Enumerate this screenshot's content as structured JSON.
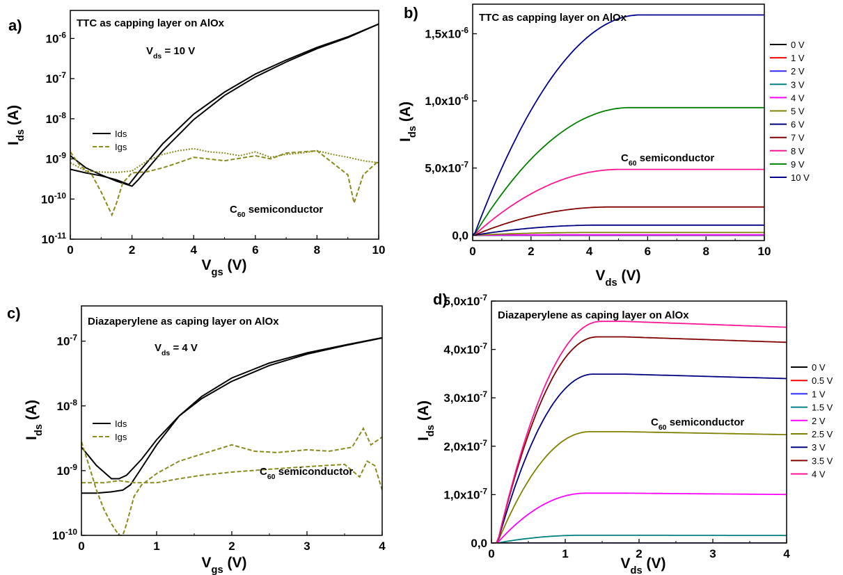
{
  "chart_data": [
    {
      "panel": "a)",
      "type": "line",
      "title": "TTC as capping layer on AlOx",
      "annotation_main": "V",
      "annotation_main_sub": "ds",
      "annotation_main_rest": " = 10 V",
      "annotation_2": "C",
      "annotation_2_sub": "60",
      "annotation_2_rest": " semiconductor",
      "xlabel": "V",
      "xlabel_sub": "gs",
      "xlabel_rest": " (V)",
      "ylabel": "I",
      "ylabel_sub": "ds",
      "ylabel_rest": " (A)",
      "xlim": [
        0,
        10
      ],
      "ylim": [
        1e-11,
        5e-06
      ],
      "yscale": "log",
      "xticks": [
        "0",
        "2",
        "4",
        "6",
        "8",
        "10"
      ],
      "yticks": [
        {
          "value": 1e-11,
          "base": "10",
          "exp": "-11"
        },
        {
          "value": 1e-10,
          "base": "10",
          "exp": "-10"
        },
        {
          "value": 1e-09,
          "base": "10",
          "exp": "-9"
        },
        {
          "value": 1e-08,
          "base": "10",
          "exp": "-8"
        },
        {
          "value": 1e-07,
          "base": "10",
          "exp": "-7"
        },
        {
          "value": 1e-06,
          "base": "10",
          "exp": "-6"
        }
      ],
      "legend": [
        {
          "name": "Ids",
          "style": "solid",
          "color": "#000000"
        },
        {
          "name": "Igs",
          "style": "dashed",
          "color": "#8a8a1e"
        }
      ],
      "series": [
        {
          "name": "Ids",
          "color": "#000000",
          "style": "solid",
          "x": [
            0,
            0.5,
            1,
            1.5,
            1.9,
            2.2,
            3,
            4,
            5,
            6,
            7,
            8,
            9,
            10
          ],
          "y": [
            5.5e-10,
            4.5e-10,
            3.8e-10,
            3e-10,
            2.3e-10,
            4.5e-10,
            2.4e-09,
            1.3e-08,
            4.6e-08,
            1.3e-07,
            2.9e-07,
            6e-07,
            1.1e-06,
            2.3e-06
          ]
        },
        {
          "name": "Ids",
          "color": "#000000",
          "style": "solid",
          "x": [
            0,
            0.5,
            1,
            1.5,
            2,
            2.2,
            3,
            4,
            5,
            6,
            7,
            8,
            9,
            10
          ],
          "y": [
            1.2e-09,
            6e-10,
            4e-10,
            2.8e-10,
            2.1e-10,
            3e-10,
            1.6e-09,
            9.5e-09,
            3.8e-08,
            1.1e-07,
            2.6e-07,
            5.6e-07,
            1.05e-06,
            2.3e-06
          ]
        },
        {
          "name": "Igs",
          "color": "#8a8a1e",
          "style": "dashed",
          "x": [
            0,
            0.3,
            0.7,
            1.0,
            1.2,
            1.35,
            1.5,
            1.7,
            2.0,
            2.5,
            3,
            3.5,
            4,
            5,
            6,
            6.5,
            7,
            8,
            8.5,
            9,
            9.2,
            9.5,
            10
          ],
          "y": [
            1.5e-09,
            7e-10,
            4e-10,
            1.5e-10,
            7e-11,
            4e-11,
            8e-11,
            2.5e-10,
            4.5e-10,
            4.8e-10,
            6e-10,
            8e-10,
            1.1e-09,
            9e-10,
            1.2e-09,
            1e-09,
            1.4e-09,
            1.6e-09,
            8e-10,
            4e-10,
            8e-11,
            4e-10,
            9e-10
          ]
        },
        {
          "name": "Igs",
          "color": "#8a8a1e",
          "style": "dotted",
          "x": [
            0,
            0.5,
            1,
            1.5,
            2,
            2.5,
            3,
            3.5,
            4,
            4.5,
            5,
            5.5,
            6,
            6.5,
            7,
            7.5,
            8,
            8.5,
            9,
            9.5,
            10
          ],
          "y": [
            8e-10,
            5e-10,
            4.7e-10,
            4.6e-10,
            5e-10,
            9e-10,
            1.3e-09,
            1.6e-09,
            1.8e-09,
            1.5e-09,
            1.4e-09,
            1.2e-09,
            1.5e-09,
            1.1e-09,
            1.3e-09,
            1.4e-09,
            1.6e-09,
            1.3e-09,
            1.1e-09,
            9e-10,
            8e-10
          ]
        }
      ]
    },
    {
      "panel": "b)",
      "type": "line",
      "title": "TTC as capping layer on AlOx",
      "annotation_2": "C",
      "annotation_2_sub": "60",
      "annotation_2_rest": " semiconductor",
      "xlabel": "V",
      "xlabel_sub": "ds",
      "xlabel_rest": " (V)",
      "ylabel": "I",
      "ylabel_sub": "ds",
      "ylabel_rest": " (A)",
      "xlim": [
        0,
        10
      ],
      "ylim": [
        -4e-08,
        1.72e-06
      ],
      "yscale": "linear",
      "xticks": [
        "0",
        "2",
        "4",
        "6",
        "8",
        "10"
      ],
      "yticks": [
        {
          "value": 0,
          "base": "0,0",
          "exp": ""
        },
        {
          "value": 5e-07,
          "base": "5,0x10",
          "exp": "-7"
        },
        {
          "value": 1e-06,
          "base": "1,0x10",
          "exp": "-6"
        },
        {
          "value": 1.5e-06,
          "base": "1,5x10",
          "exp": "-6"
        }
      ],
      "series": [
        {
          "name": "0 V",
          "color": "#000000",
          "sat": 0
        },
        {
          "name": "1 V",
          "color": "#ff0000",
          "sat": 0
        },
        {
          "name": "2 V",
          "color": "#2a2aff",
          "sat": 0
        },
        {
          "name": "3 V",
          "color": "#008080",
          "sat": 1e-09
        },
        {
          "name": "4 V",
          "color": "#ff00ff",
          "sat": 3e-09
        },
        {
          "name": "5 V",
          "color": "#808000",
          "sat": 2e-08
        },
        {
          "name": "6 V",
          "color": "#000080",
          "sat": 7.5e-08
        },
        {
          "name": "7 V",
          "color": "#800000",
          "sat": 2.1e-07
        },
        {
          "name": "8 V",
          "color": "#ff1493",
          "sat": 4.9e-07
        },
        {
          "name": "9 V",
          "color": "#008000",
          "sat": 9.5e-07
        },
        {
          "name": "10 V",
          "color": "#00008b",
          "sat": 1.64e-06
        }
      ]
    },
    {
      "panel": "c)",
      "type": "line",
      "title": "Diazaperylene as caping layer on AlOx",
      "annotation_main": "V",
      "annotation_main_sub": "ds",
      "annotation_main_rest": " = 4 V",
      "annotation_2": "C",
      "annotation_2_sub": "60",
      "annotation_2_rest": " semiconductor",
      "xlabel": "V",
      "xlabel_sub": "gs",
      "xlabel_rest": " (V)",
      "ylabel": "I",
      "ylabel_sub": "ds",
      "ylabel_rest": " (A)",
      "xlim": [
        0,
        4
      ],
      "ylim": [
        1e-10,
        3.5e-07
      ],
      "yscale": "log",
      "xticks": [
        "0",
        "1",
        "2",
        "3",
        "4"
      ],
      "yticks": [
        {
          "value": 1e-10,
          "base": "10",
          "exp": "-10"
        },
        {
          "value": 1e-09,
          "base": "10",
          "exp": "-9"
        },
        {
          "value": 1e-08,
          "base": "10",
          "exp": "-8"
        },
        {
          "value": 1e-07,
          "base": "10",
          "exp": "-7"
        }
      ],
      "legend": [
        {
          "name": "Ids",
          "style": "solid",
          "color": "#000000"
        },
        {
          "name": "Igs",
          "style": "dashed",
          "color": "#8a8a1e"
        }
      ],
      "series": [
        {
          "name": "Ids",
          "color": "#000000",
          "style": "solid",
          "x": [
            0,
            0.2,
            0.4,
            0.5,
            0.6,
            0.8,
            1.0,
            1.3,
            1.6,
            2.0,
            2.5,
            3.0,
            3.5,
            4.0
          ],
          "y": [
            2.3e-09,
            1.2e-09,
            7.5e-10,
            7.5e-10,
            8.5e-10,
            1.5e-09,
            3e-09,
            7e-09,
            1.3e-08,
            2.4e-08,
            4.2e-08,
            6.3e-08,
            8.5e-08,
            1.12e-07
          ]
        },
        {
          "name": "Ids",
          "color": "#000000",
          "style": "solid",
          "x": [
            0,
            0.2,
            0.4,
            0.55,
            0.65,
            0.8,
            1.0,
            1.3,
            1.6,
            2.0,
            2.5,
            3.0,
            3.5,
            4.0
          ],
          "y": [
            4.5e-10,
            4.5e-10,
            4.7e-10,
            5e-10,
            6e-10,
            1.1e-09,
            2.5e-09,
            7e-09,
            1.4e-08,
            2.7e-08,
            4.6e-08,
            6.6e-08,
            8.7e-08,
            1.13e-07
          ]
        },
        {
          "name": "Igs",
          "color": "#8a8a1e",
          "style": "dashed",
          "x": [
            0,
            0.1,
            0.2,
            0.3,
            0.4,
            0.5,
            0.55,
            0.6,
            0.7,
            0.8,
            1.0,
            1.3,
            1.6,
            2.0,
            2.3,
            2.6,
            3.0,
            3.3,
            3.6,
            3.75,
            3.85,
            4.0
          ],
          "y": [
            2.8e-09,
            1.2e-09,
            5e-10,
            2.5e-10,
            1.5e-10,
            1e-10,
            1e-10,
            1.5e-10,
            4e-10,
            6e-10,
            9e-10,
            1.4e-09,
            1.8e-09,
            2.5e-09,
            2e-09,
            1.9e-09,
            2.1e-09,
            2e-09,
            2.3e-09,
            4.5e-09,
            2.5e-09,
            3.3e-09
          ]
        },
        {
          "name": "Igs",
          "color": "#8a8a1e",
          "style": "dashed",
          "x": [
            0,
            0.3,
            0.5,
            0.7,
            1.0,
            1.3,
            1.6,
            2.0,
            2.5,
            3.0,
            3.5,
            3.7,
            3.8,
            3.9,
            4.0
          ],
          "y": [
            6.5e-10,
            6.5e-10,
            7e-10,
            6.5e-10,
            6.5e-10,
            7.5e-10,
            8.5e-10,
            9.5e-10,
            1.05e-09,
            1.15e-09,
            1.25e-09,
            8e-10,
            1.4e-09,
            1.2e-09,
            5e-10
          ]
        }
      ]
    },
    {
      "panel": "d)",
      "type": "line",
      "title": "Diazaperylene as caping layer on AlOx",
      "annotation_2": "C",
      "annotation_2_sub": "60",
      "annotation_2_rest": " semiconductor",
      "xlabel": "V",
      "xlabel_sub": "ds",
      "xlabel_rest": " (V)",
      "ylabel": "I",
      "ylabel_sub": "ds",
      "ylabel_rest": " (A)",
      "xlim": [
        0,
        4
      ],
      "ylim": [
        0,
        5e-07
      ],
      "yscale": "linear",
      "xticks": [
        "0",
        "1",
        "2",
        "3",
        "4"
      ],
      "yticks": [
        {
          "value": 0,
          "base": "0,0",
          "exp": ""
        },
        {
          "value": 1e-07,
          "base": "1,0x10",
          "exp": "-7"
        },
        {
          "value": 2e-07,
          "base": "2,0x10",
          "exp": "-7"
        },
        {
          "value": 3e-07,
          "base": "3,0x10",
          "exp": "-7"
        },
        {
          "value": 4e-07,
          "base": "4,0x10",
          "exp": "-7"
        },
        {
          "value": 5e-07,
          "base": "5,0x10",
          "exp": "-7"
        }
      ],
      "series": [
        {
          "name": "0 V",
          "color": "#000000",
          "sat": 0
        },
        {
          "name": "0.5 V",
          "color": "#ff0000",
          "sat": 0
        },
        {
          "name": "1 V",
          "color": "#2a2aff",
          "sat": 0
        },
        {
          "name": "1.5 V",
          "color": "#008080",
          "sat": 1.6e-08
        },
        {
          "name": "2 V",
          "color": "#ff00ff",
          "sat": 1.03e-07
        },
        {
          "name": "2.5 V",
          "color": "#808000",
          "sat": 2.3e-07
        },
        {
          "name": "3 V",
          "color": "#000080",
          "sat": 3.49e-07
        },
        {
          "name": "3.5 V",
          "color": "#800000",
          "sat": 4.26e-07
        },
        {
          "name": "4 V",
          "color": "#ff1493",
          "sat": 4.58e-07
        }
      ]
    }
  ]
}
